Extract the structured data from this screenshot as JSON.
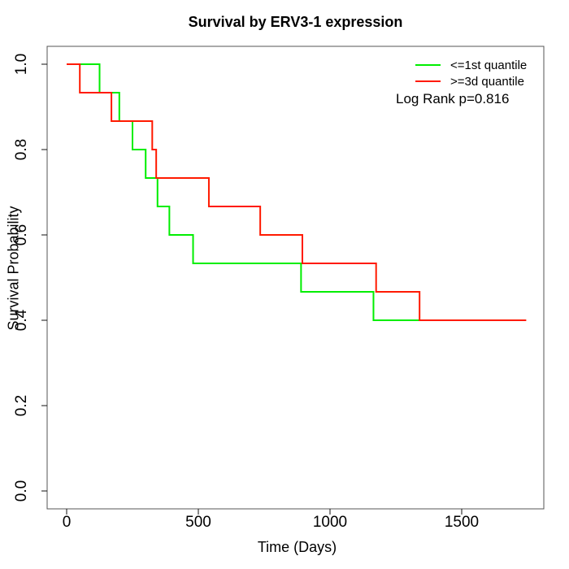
{
  "chart_data": {
    "type": "line",
    "subtype": "kaplan-meier-step",
    "title": "Survival by ERV3-1 expression",
    "xlabel": "Time (Days)",
    "ylabel": "Survival Probability",
    "xlim": [
      0,
      1810
    ],
    "ylim": [
      0.0,
      1.0
    ],
    "grid": false,
    "legend_position": "top-right",
    "legend_box": false,
    "annotation": "Log Rank p=0.816",
    "x_tick_values": [
      0,
      500,
      1000,
      1500
    ],
    "x_tick_labels": [
      "0",
      "500",
      "1000",
      "1500"
    ],
    "y_tick_values": [
      0.0,
      0.2,
      0.4,
      0.6,
      0.8,
      1.0
    ],
    "y_tick_labels": [
      "0.0",
      "0.2",
      "0.4",
      "0.6",
      "0.8",
      "1.0"
    ],
    "series": [
      {
        "name": "<=1st quantile",
        "color": "#00ee00",
        "step_times": [
          0,
          125,
          200,
          250,
          300,
          345,
          390,
          480,
          890,
          1165
        ],
        "step_survival": [
          1.0,
          0.9333,
          0.8667,
          0.8,
          0.7333,
          0.6667,
          0.6,
          0.5333,
          0.4667,
          0.4
        ],
        "end_time": 1670
      },
      {
        "name": ">=3d quantile",
        "color": "#ff1a00",
        "step_times": [
          0,
          50,
          170,
          325,
          340,
          540,
          735,
          895,
          1175,
          1340
        ],
        "step_survival": [
          1.0,
          0.9333,
          0.8667,
          0.8,
          0.7333,
          0.6667,
          0.6,
          0.5333,
          0.4667,
          0.4
        ],
        "end_time": 1745
      }
    ]
  },
  "style_colors": {
    "box": "#555555",
    "tick": "#111111"
  }
}
